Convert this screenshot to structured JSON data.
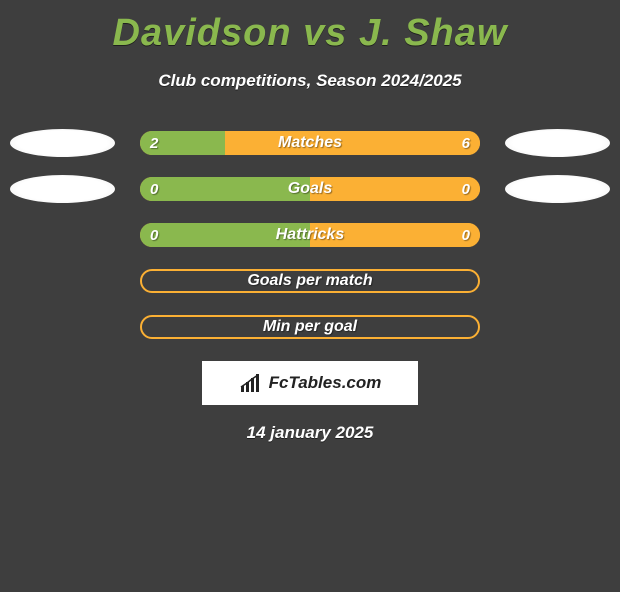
{
  "title": "Davidson vs J. Shaw",
  "subtitle": "Club competitions, Season 2024/2025",
  "rows": [
    {
      "label": "Matches",
      "left": "2",
      "right": "6",
      "left_pct": 25,
      "right_pct": 75,
      "has_fill": true,
      "left_avatar": true,
      "right_avatar": true
    },
    {
      "label": "Goals",
      "left": "0",
      "right": "0",
      "left_pct": 50,
      "right_pct": 50,
      "has_fill": true,
      "left_avatar": true,
      "right_avatar": true
    },
    {
      "label": "Hattricks",
      "left": "0",
      "right": "0",
      "left_pct": 50,
      "right_pct": 50,
      "has_fill": true,
      "left_avatar": false,
      "right_avatar": false
    },
    {
      "label": "Goals per match",
      "left": "",
      "right": "",
      "left_pct": 0,
      "right_pct": 0,
      "has_fill": false,
      "left_avatar": false,
      "right_avatar": false
    },
    {
      "label": "Min per goal",
      "left": "",
      "right": "",
      "left_pct": 0,
      "right_pct": 0,
      "has_fill": false,
      "left_avatar": false,
      "right_avatar": false
    }
  ],
  "brand": "FcTables.com",
  "date": "14 january 2025",
  "colors": {
    "background": "#3e3e3e",
    "accent_green": "#8ab84e",
    "accent_orange": "#fbb034",
    "text_white": "#ffffff"
  }
}
